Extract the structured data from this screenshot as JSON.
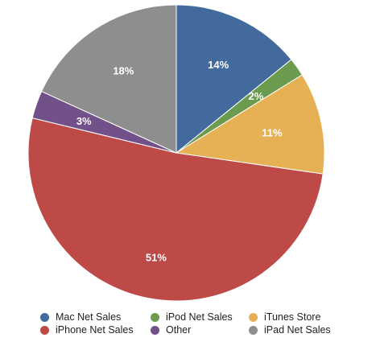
{
  "chart_data": {
    "type": "pie",
    "title": "",
    "slices": [
      {
        "name": "Mac Net Sales",
        "value": 14,
        "label": "14%",
        "color": "#436a9d"
      },
      {
        "name": "iPod Net Sales",
        "value": 2,
        "label": "2%",
        "color": "#6a9b4e"
      },
      {
        "name": "iTunes Store",
        "value": 11,
        "label": "11%",
        "color": "#e6b055"
      },
      {
        "name": "iPhone Net Sales",
        "value": 51,
        "label": "51%",
        "color": "#bd4a47"
      },
      {
        "name": "Other",
        "value": 3,
        "label": "3%",
        "color": "#725089"
      },
      {
        "name": "iPad Net Sales",
        "value": 18,
        "label": "18%",
        "color": "#8e8e8e"
      }
    ],
    "legend_position": "bottom"
  }
}
